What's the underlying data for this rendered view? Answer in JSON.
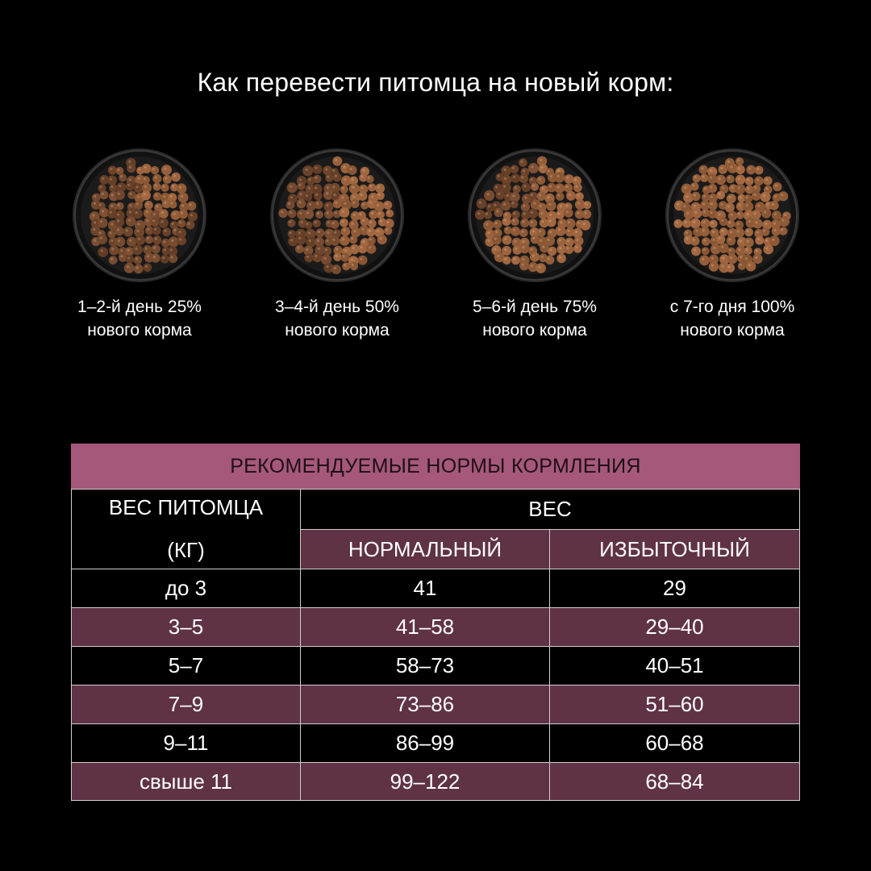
{
  "title": "Как перевести питомца  на новый корм:",
  "colors": {
    "background": "#000000",
    "table_title_bg": "#a5587a",
    "row_plum": "#5f3245",
    "kibble": "#8a5534"
  },
  "stages": [
    {
      "line1": "1–2-й день 25%",
      "line2": "нового корма",
      "new_food_share": 25
    },
    {
      "line1": "3–4-й день 50%",
      "line2": "нового корма",
      "new_food_share": 50
    },
    {
      "line1": "5–6-й день 75%",
      "line2": "нового корма",
      "new_food_share": 75
    },
    {
      "line1": "с 7-го дня 100%",
      "line2": "нового корма",
      "new_food_share": 100
    }
  ],
  "table": {
    "title": "РЕКОМЕНДУЕМЫЕ НОРМЫ КОРМЛЕНИЯ",
    "col1_header_line1": "ВЕС ПИТОМЦА",
    "col1_header_line2": "(КГ)",
    "weight_header": "ВЕС",
    "normal_header": "НОРМАЛЬНЫЙ",
    "excess_header": "ИЗБЫТОЧНЫЙ",
    "rows": [
      {
        "pet_weight": "до 3",
        "normal": "41",
        "excess": "29"
      },
      {
        "pet_weight": "3–5",
        "normal": "41–58",
        "excess": "29–40"
      },
      {
        "pet_weight": "5–7",
        "normal": "58–73",
        "excess": "40–51"
      },
      {
        "pet_weight": "7–9",
        "normal": "73–86",
        "excess": "51–60"
      },
      {
        "pet_weight": "9–11",
        "normal": "86–99",
        "excess": "60–68"
      },
      {
        "pet_weight": "свыше 11",
        "normal": "99–122",
        "excess": "68–84"
      }
    ]
  }
}
